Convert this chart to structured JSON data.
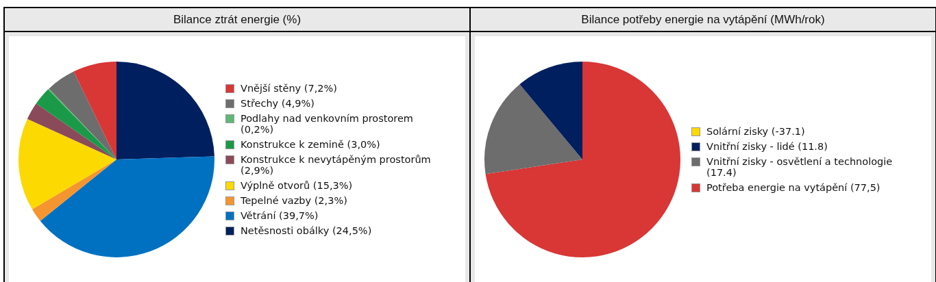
{
  "chart_data": [
    {
      "type": "pie",
      "title": "Bilance ztrát energie (%)",
      "legend": "right",
      "categories": [
        "Vnější stěny",
        "Střechy",
        "Podlahy nad venkovním prostorem",
        "Konstrukce k zemině",
        "Konstrukce k nevytápěným prostorům",
        "Výplně otvorů",
        "Tepelné vazby",
        "Větrání",
        "Netěsnosti obálky"
      ],
      "values": [
        7.2,
        4.9,
        0.2,
        3.0,
        2.9,
        15.3,
        2.3,
        39.7,
        24.5
      ],
      "value_labels": [
        "(7,2%)",
        "(4,9%)",
        "(0,2%)",
        "(3,0%)",
        "(2,9%)",
        "(15,3%)",
        "(2,3%)",
        "(39,7%)",
        "(24,5%)"
      ],
      "colors": [
        "#d93636",
        "#6d6d6d",
        "#5fb878",
        "#1a9a48",
        "#8b4a5a",
        "#fcd900",
        "#f5952f",
        "#0071c1",
        "#001f5e"
      ]
    },
    {
      "type": "pie",
      "title": "Bilance potřeby energie na vytápění (MWh/rok)",
      "legend": "right",
      "categories": [
        "Solární zisky",
        "Vnitřní zisky - lidé",
        "Vnitřní zisky - osvětlení a technologie",
        "Potřeba energie na vytápění"
      ],
      "values": [
        null,
        11.8,
        17.4,
        77.5
      ],
      "value_labels": [
        "(-37.1)",
        "(11.8)",
        "(17.4)",
        "(77,5)"
      ],
      "colors": [
        "#fcd900",
        "#001f5e",
        "#6d6d6d",
        "#d93636"
      ]
    }
  ]
}
